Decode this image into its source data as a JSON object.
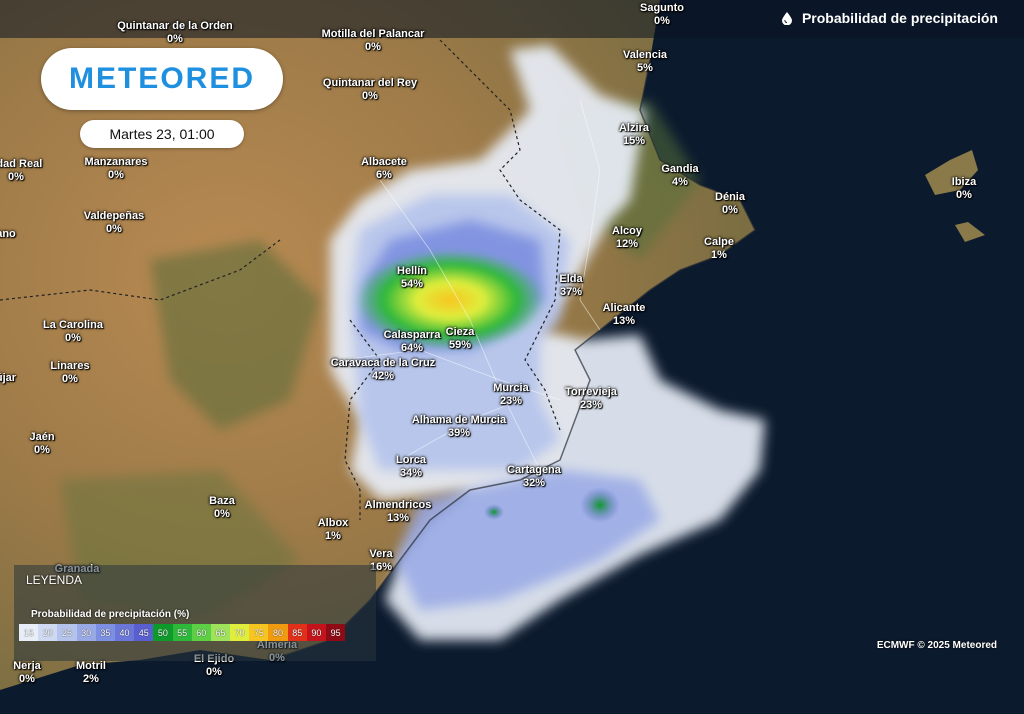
{
  "header": {
    "title": "Probabilidad de precipitación",
    "icon": "drop-icon"
  },
  "brand": {
    "logo": "METEORED",
    "color": "#1f8fe0"
  },
  "date": "Martes 23, 01:00",
  "cities": [
    {
      "name": "Quintanar de la Orden",
      "value": "0%"
    },
    {
      "name": "Motilla del Palancar",
      "value": "0%"
    },
    {
      "name": "Sagunto",
      "value": "0%"
    },
    {
      "name": "Valencia",
      "value": "5%"
    },
    {
      "name": "Quintanar del Rey",
      "value": "0%"
    },
    {
      "name": "Alzira",
      "value": "15%"
    },
    {
      "name": "Albacete",
      "value": "6%"
    },
    {
      "name": "Gandia",
      "value": "4%"
    },
    {
      "name": "Manzanares",
      "value": "0%"
    },
    {
      "name": "udad Real",
      "value": "0%"
    },
    {
      "name": "Dénia",
      "value": "0%"
    },
    {
      "name": "Valdepeñas",
      "value": "0%"
    },
    {
      "name": "Alcoy",
      "value": "12%"
    },
    {
      "name": "Calpe",
      "value": "1%"
    },
    {
      "name": "Ibiza",
      "value": "0%"
    },
    {
      "name": "Hellín",
      "value": "54%"
    },
    {
      "name": "Elda",
      "value": "37%"
    },
    {
      "name": "Alicante",
      "value": "13%"
    },
    {
      "name": "La Carolina",
      "value": "0%"
    },
    {
      "name": "Calasparra",
      "value": "64%"
    },
    {
      "name": "Cieza",
      "value": "59%"
    },
    {
      "name": "Linares",
      "value": "0%"
    },
    {
      "name": "Caravaca de la Cruz",
      "value": "42%"
    },
    {
      "name": "Murcia",
      "value": "23%"
    },
    {
      "name": "Torrevieja",
      "value": "23%"
    },
    {
      "name": "Alhama de Murcia",
      "value": "39%"
    },
    {
      "name": "Jaén",
      "value": "0%"
    },
    {
      "name": "Lorca",
      "value": "34%"
    },
    {
      "name": "Cartagena",
      "value": "32%"
    },
    {
      "name": "Baza",
      "value": "0%"
    },
    {
      "name": "Almendricos",
      "value": "13%"
    },
    {
      "name": "Albox",
      "value": "1%"
    },
    {
      "name": "Vera",
      "value": "16%"
    },
    {
      "name": "Granada",
      "value": ""
    },
    {
      "name": "Almería",
      "value": "0%"
    },
    {
      "name": "El Ejido",
      "value": "0%"
    },
    {
      "name": "Nerja",
      "value": "0%"
    },
    {
      "name": "Motril",
      "value": "2%"
    },
    {
      "name": "ano",
      "value": ""
    },
    {
      "name": "újar",
      "value": ""
    }
  ],
  "legend": {
    "label": "LEYENDA",
    "title": "Probabilidad de precipitación (%)",
    "steps": [
      {
        "label": "15",
        "color": "#e8eef8"
      },
      {
        "label": "20",
        "color": "#cfd9f2"
      },
      {
        "label": "25",
        "color": "#b4c3ec"
      },
      {
        "label": "30",
        "color": "#98a9e6"
      },
      {
        "label": "35",
        "color": "#7d8fe0"
      },
      {
        "label": "40",
        "color": "#6a77d8"
      },
      {
        "label": "45",
        "color": "#5a5fd0"
      },
      {
        "label": "50",
        "color": "#0e9a2a"
      },
      {
        "label": "55",
        "color": "#2db83a"
      },
      {
        "label": "60",
        "color": "#5ccf45"
      },
      {
        "label": "65",
        "color": "#9ee35a"
      },
      {
        "label": "70",
        "color": "#dfee3c"
      },
      {
        "label": "75",
        "color": "#f7c520"
      },
      {
        "label": "80",
        "color": "#f09a10"
      },
      {
        "label": "85",
        "color": "#e0301a"
      },
      {
        "label": "90",
        "color": "#c4141b"
      },
      {
        "label": "95",
        "color": "#8e0a14"
      }
    ]
  },
  "credit": "ECMWF © 2025 Meteored"
}
